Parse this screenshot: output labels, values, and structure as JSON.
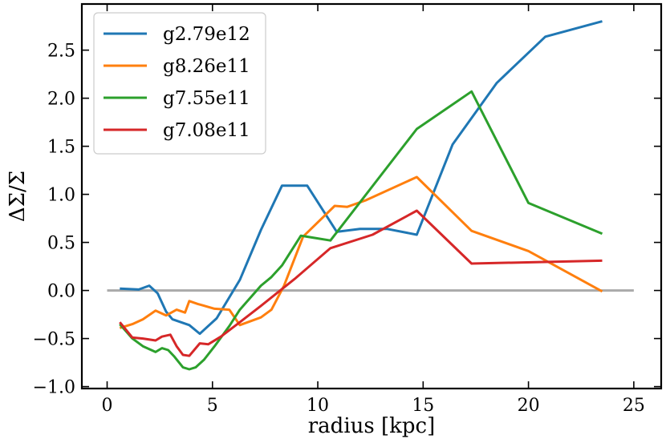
{
  "chart_data": {
    "type": "line",
    "title": "",
    "xlabel": "radius [kpc]",
    "ylabel": "ΔΣ/Σ",
    "xlim": [
      -1.2,
      26.3
    ],
    "ylim": [
      -1.02,
      2.98
    ],
    "xticks": [
      0,
      5,
      10,
      15,
      20,
      25
    ],
    "xtick_labels": [
      "0",
      "5",
      "10",
      "15",
      "20",
      "25"
    ],
    "yticks": [
      -1.0,
      -0.5,
      0.0,
      0.5,
      1.0,
      1.5,
      2.0,
      2.5
    ],
    "ytick_labels": [
      "−1.0",
      "−0.5",
      "0.0",
      "0.5",
      "1.0",
      "1.5",
      "2.0",
      "2.5"
    ],
    "grid": false,
    "legend_position": "top-left",
    "reference_line": {
      "y": 0.0,
      "x_range": [
        0,
        25
      ],
      "color": "#aaaaaa"
    },
    "series": [
      {
        "name": "g2.79e12",
        "color": "#1f77b4",
        "x": [
          0.6,
          1.5,
          2.0,
          2.4,
          2.8,
          3.1,
          3.5,
          3.9,
          4.4,
          5.2,
          6.3,
          7.3,
          8.3,
          9.5,
          10.9,
          12.0,
          13.3,
          14.7,
          16.4,
          18.5,
          20.8,
          23.5
        ],
        "y": [
          0.02,
          0.01,
          0.05,
          -0.03,
          -0.22,
          -0.3,
          -0.33,
          -0.36,
          -0.45,
          -0.29,
          0.11,
          0.63,
          1.09,
          1.09,
          0.61,
          0.64,
          0.64,
          0.58,
          1.52,
          2.16,
          2.64,
          2.8
        ]
      },
      {
        "name": "g8.26e11",
        "color": "#ff7f0e",
        "x": [
          0.6,
          1.2,
          1.7,
          2.3,
          2.8,
          3.3,
          3.7,
          3.9,
          4.3,
          5.1,
          5.8,
          6.3,
          7.3,
          7.8,
          8.4,
          9.3,
          10.8,
          11.4,
          12.3,
          14.7,
          17.3,
          20.0,
          23.5
        ],
        "y": [
          -0.39,
          -0.35,
          -0.3,
          -0.21,
          -0.26,
          -0.2,
          -0.23,
          -0.11,
          -0.14,
          -0.19,
          -0.2,
          -0.36,
          -0.28,
          -0.2,
          0.05,
          0.56,
          0.88,
          0.87,
          0.94,
          1.18,
          0.62,
          0.41,
          -0.01
        ]
      },
      {
        "name": "g7.55e11",
        "color": "#2ca02c",
        "x": [
          0.6,
          1.2,
          1.7,
          2.3,
          2.6,
          2.9,
          3.2,
          3.6,
          3.9,
          4.2,
          4.6,
          5.1,
          5.8,
          6.3,
          7.3,
          7.8,
          8.3,
          9.2,
          10.6,
          14.7,
          17.3,
          20.0,
          23.5
        ],
        "y": [
          -0.35,
          -0.5,
          -0.58,
          -0.64,
          -0.6,
          -0.62,
          -0.69,
          -0.8,
          -0.82,
          -0.8,
          -0.72,
          -0.58,
          -0.37,
          -0.2,
          0.05,
          0.14,
          0.26,
          0.57,
          0.52,
          1.68,
          2.07,
          0.91,
          0.59
        ]
      },
      {
        "name": "g7.08e11",
        "color": "#d62728",
        "x": [
          0.6,
          1.2,
          1.7,
          2.3,
          2.6,
          3.0,
          3.3,
          3.6,
          3.9,
          4.4,
          4.8,
          5.4,
          6.3,
          7.3,
          8.9,
          10.6,
          12.6,
          14.7,
          17.3,
          23.5
        ],
        "y": [
          -0.33,
          -0.49,
          -0.5,
          -0.52,
          -0.48,
          -0.46,
          -0.58,
          -0.67,
          -0.68,
          -0.55,
          -0.56,
          -0.48,
          -0.33,
          -0.16,
          0.12,
          0.44,
          0.58,
          0.83,
          0.28,
          0.31
        ]
      }
    ]
  }
}
